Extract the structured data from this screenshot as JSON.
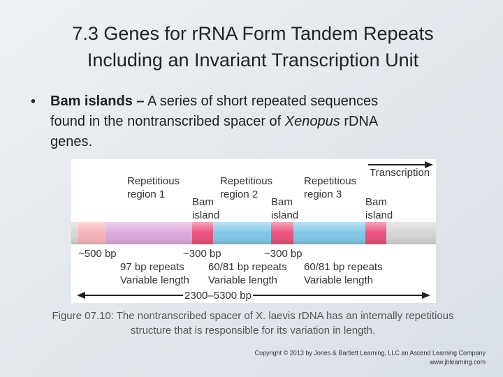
{
  "title": [
    "7.3  Genes for rRNA Form Tandem Repeats",
    "Including an Invariant Transcription Unit"
  ],
  "bullet": {
    "lines": [
      [
        {
          "text": "Bam islands –",
          "style": "bold"
        },
        {
          "text": "A series of short repeated sequences"
        }
      ],
      [
        {
          "text": "found in the nontranscribed spacer of"
        },
        {
          "text": "Xenopus",
          "style": "italic"
        },
        {
          "text": "rDNA"
        }
      ],
      [
        {
          "text": "genes."
        }
      ]
    ]
  },
  "diagram": {
    "transcription": "Transcription",
    "regions": [
      [
        "Repetitious",
        "region 1"
      ],
      [
        "Repetitious",
        "region 2"
      ],
      [
        "Repetitious",
        "region 3"
      ]
    ],
    "bam": [
      [
        "Bam",
        "island"
      ],
      [
        "Bam",
        "island"
      ],
      [
        "Bam",
        "island"
      ]
    ],
    "lengths": [
      "~500 bp",
      "~300 bp",
      "~300 bp"
    ],
    "repeats": [
      [
        "97 bp repeats",
        "Variable length"
      ],
      [
        "60/81 bp repeats",
        "Variable length"
      ],
      [
        "60/81 bp repeats",
        "Variable length"
      ]
    ],
    "total": "2300–5300 bp"
  },
  "caption": [
    "Figure 07.10: The nontranscribed spacer of X. laevis rDNA has an internally repetitious",
    "structure that is responsible for its variation in length."
  ],
  "copyright": [
    "Copyright © 2013 by Jones & Bartlett Learning, LLC an Ascend Learning Company",
    "www.jblearning.com"
  ]
}
